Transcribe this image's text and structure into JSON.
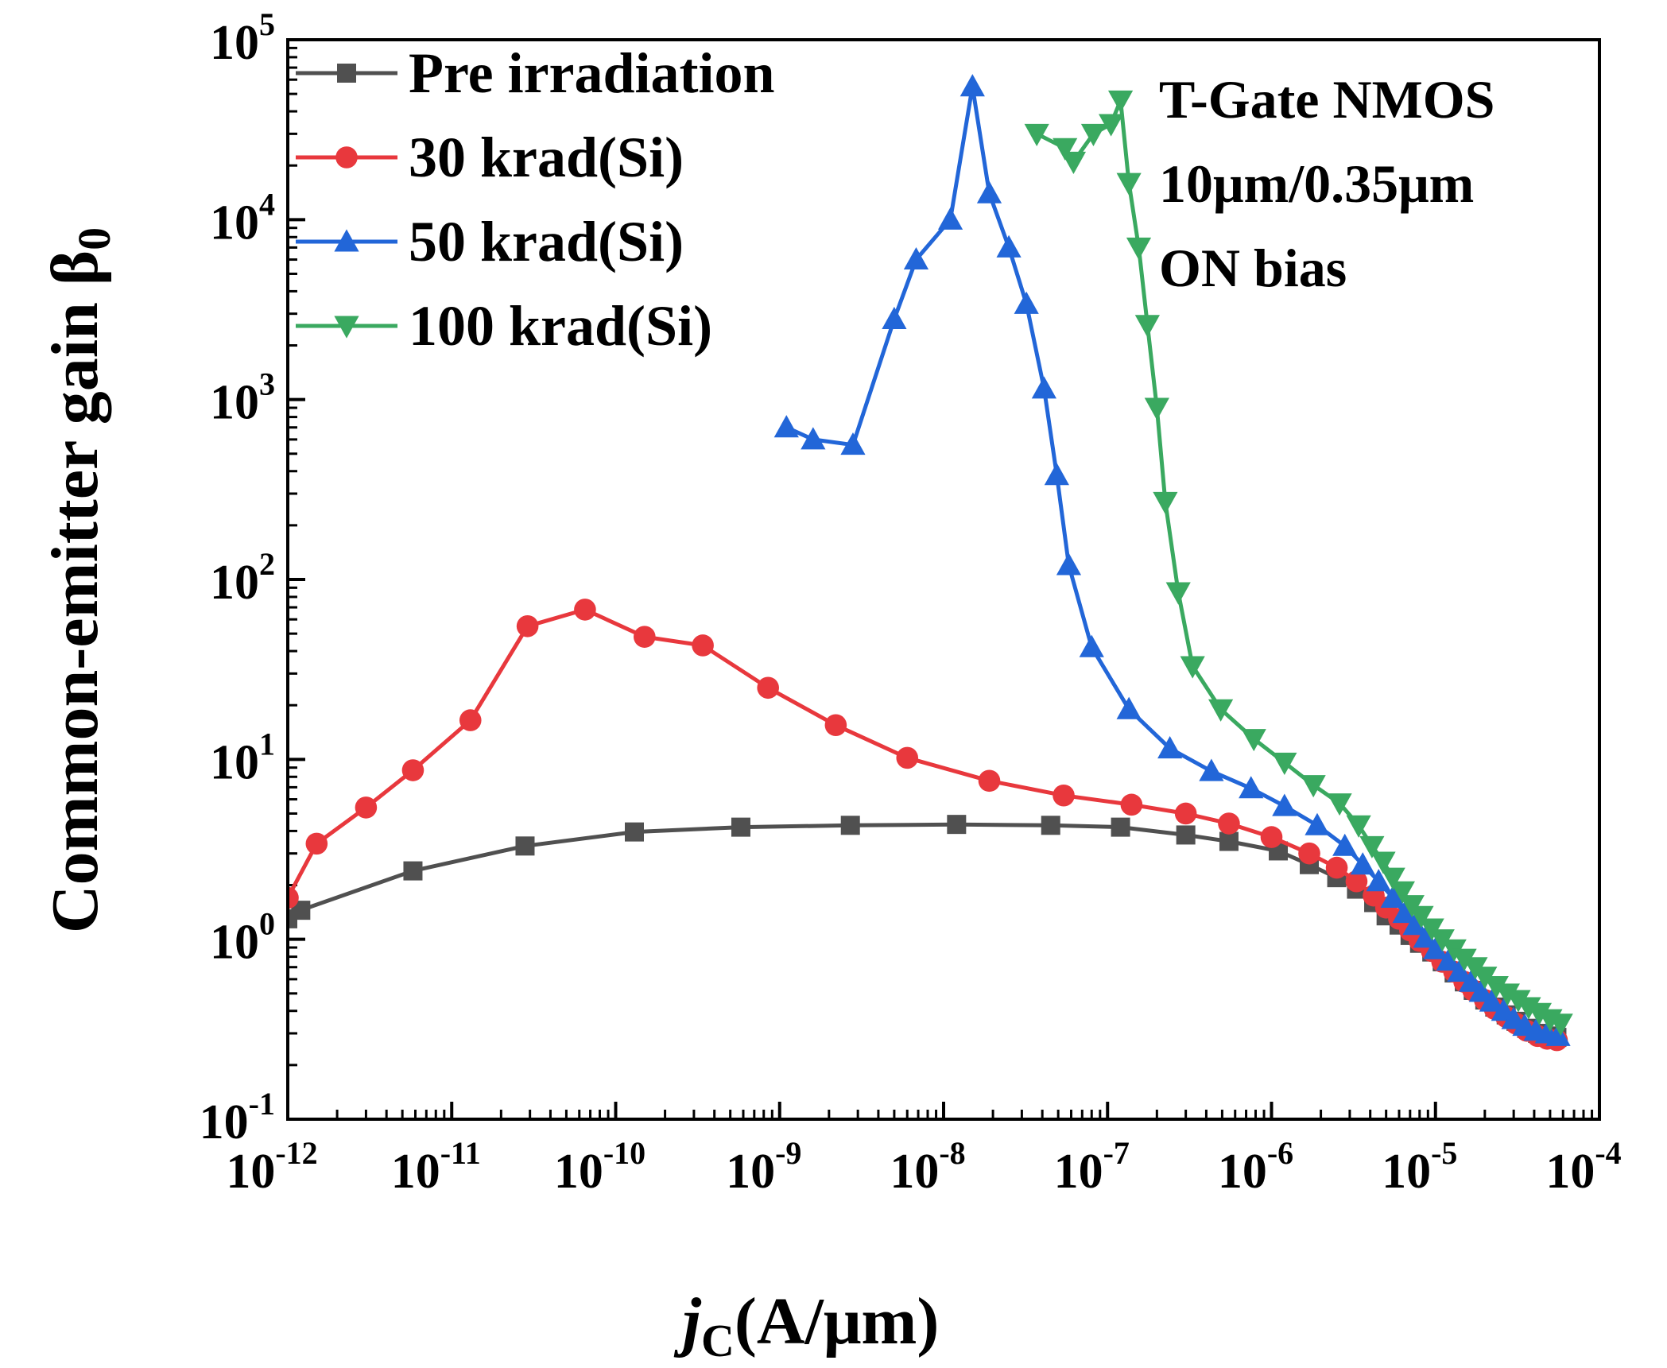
{
  "chart_data": {
    "type": "line",
    "xscale": "log",
    "yscale": "log",
    "xlim_exp": [
      -12,
      -4
    ],
    "ylim_exp": [
      -1,
      5
    ],
    "xlabel": {
      "italic": "j",
      "sub": "C",
      "rest": "(A/μm)"
    },
    "ylabel": {
      "text": "Common-emitter gain β",
      "sub": "0"
    },
    "x_ticks": [
      {
        "base": "10",
        "exp": "-12"
      },
      {
        "base": "10",
        "exp": "-11"
      },
      {
        "base": "10",
        "exp": "-10"
      },
      {
        "base": "10",
        "exp": "-9"
      },
      {
        "base": "10",
        "exp": "-8"
      },
      {
        "base": "10",
        "exp": "-7"
      },
      {
        "base": "10",
        "exp": "-6"
      },
      {
        "base": "10",
        "exp": "-5"
      },
      {
        "base": "10",
        "exp": "-4"
      }
    ],
    "y_ticks": [
      {
        "base": "10",
        "exp": "-1"
      },
      {
        "base": "10",
        "exp": "0"
      },
      {
        "base": "10",
        "exp": "1"
      },
      {
        "base": "10",
        "exp": "2"
      },
      {
        "base": "10",
        "exp": "3"
      },
      {
        "base": "10",
        "exp": "4"
      },
      {
        "base": "10",
        "exp": "5"
      }
    ],
    "annotations": [
      "T-Gate NMOS",
      "10μm/0.35μm",
      "ON bias"
    ],
    "series": [
      {
        "name": "Pre irradiation",
        "color": "#505050",
        "marker": "square",
        "x": [
          1e-12,
          1.2e-12,
          5.8e-12,
          2.8e-11,
          1.3e-10,
          5.8e-10,
          2.7e-09,
          1.2e-08,
          4.5e-08,
          1.2e-07,
          3e-07,
          5.5e-07,
          1.1e-06,
          1.7e-06,
          2.5e-06,
          3.3e-06,
          4.2e-06,
          5e-06,
          6e-06,
          7e-06,
          8e-06,
          9.5e-06,
          1.1e-05,
          1.3e-05,
          1.5e-05,
          1.7e-05,
          2e-05,
          2.3e-05,
          2.7e-05,
          3.1e-05,
          3.6e-05,
          4.2e-05,
          4.8e-05,
          5.5e-05
        ],
        "y": [
          1.3,
          1.45,
          2.4,
          3.3,
          3.95,
          4.2,
          4.3,
          4.35,
          4.3,
          4.2,
          3.8,
          3.5,
          3.1,
          2.6,
          2.2,
          1.9,
          1.6,
          1.35,
          1.2,
          1.05,
          0.95,
          0.85,
          0.75,
          0.65,
          0.58,
          0.52,
          0.46,
          0.42,
          0.38,
          0.35,
          0.32,
          0.3,
          0.29,
          0.285
        ]
      },
      {
        "name": "30 krad(Si)",
        "color": "#e8383d",
        "marker": "circle",
        "x": [
          1e-12,
          1.5e-12,
          3e-12,
          5.8e-12,
          1.3e-11,
          2.9e-11,
          6.5e-11,
          1.5e-10,
          3.4e-10,
          8.5e-10,
          2.2e-09,
          6e-09,
          1.9e-08,
          5.4e-08,
          1.4e-07,
          3e-07,
          5.5e-07,
          1e-06,
          1.7e-06,
          2.5e-06,
          3.3e-06,
          4.2e-06,
          5e-06,
          6e-06,
          7e-06,
          8e-06,
          9.5e-06,
          1.1e-05,
          1.3e-05,
          1.5e-05,
          1.7e-05,
          2e-05,
          2.3e-05,
          2.7e-05,
          3.1e-05,
          3.6e-05,
          4.2e-05,
          4.8e-05,
          5.5e-05
        ],
        "y": [
          1.7,
          3.4,
          5.4,
          8.7,
          16.5,
          55,
          68,
          48,
          43,
          25,
          15.5,
          10.2,
          7.6,
          6.3,
          5.6,
          5.0,
          4.4,
          3.7,
          3.0,
          2.5,
          2.1,
          1.75,
          1.5,
          1.3,
          1.12,
          0.98,
          0.86,
          0.75,
          0.66,
          0.58,
          0.52,
          0.46,
          0.41,
          0.37,
          0.34,
          0.31,
          0.29,
          0.28,
          0.275
        ]
      },
      {
        "name": "50 krad(Si)",
        "color": "#2266d8",
        "marker": "triangle-up",
        "x": [
          1.1e-09,
          1.6e-09,
          2.8e-09,
          5e-09,
          6.8e-09,
          1.1e-08,
          1.5e-08,
          1.9e-08,
          2.5e-08,
          3.2e-08,
          4.1e-08,
          4.9e-08,
          5.8e-08,
          8e-08,
          1.35e-07,
          2.4e-07,
          4.3e-07,
          7.5e-07,
          1.2e-06,
          1.9e-06,
          2.8e-06,
          3.6e-06,
          4.5e-06,
          5.5e-06,
          6.5e-06,
          7.5e-06,
          8.7e-06,
          1e-05,
          1.2e-05,
          1.4e-05,
          1.65e-05,
          1.9e-05,
          2.2e-05,
          2.6e-05,
          3e-05,
          3.5e-05,
          4.1e-05,
          4.8e-05,
          5.6e-05
        ],
        "y": [
          700,
          600,
          560,
          2800,
          6000,
          10000,
          55000,
          14000,
          7000,
          3400,
          1150,
          380,
          120,
          42,
          19,
          11.5,
          8.6,
          6.9,
          5.5,
          4.3,
          3.3,
          2.6,
          2.1,
          1.7,
          1.4,
          1.2,
          1.02,
          0.88,
          0.76,
          0.66,
          0.58,
          0.51,
          0.45,
          0.4,
          0.36,
          0.33,
          0.31,
          0.3,
          0.29
        ]
      },
      {
        "name": "100 krad(Si)",
        "color": "#3aa960",
        "marker": "triangle-down",
        "x": [
          3.7e-08,
          5.5e-08,
          6.2e-08,
          8.2e-08,
          1.05e-07,
          1.2e-07,
          1.35e-07,
          1.55e-07,
          1.75e-07,
          2e-07,
          2.25e-07,
          2.7e-07,
          3.3e-07,
          4.9e-07,
          7.8e-07,
          1.2e-06,
          1.8e-06,
          2.6e-06,
          3.4e-06,
          4.1e-06,
          4.8e-06,
          5.5e-06,
          6.3e-06,
          7.2e-06,
          8.2e-06,
          9.5e-06,
          1.1e-05,
          1.3e-05,
          1.5e-05,
          1.75e-05,
          2e-05,
          2.35e-05,
          2.75e-05,
          3.2e-05,
          3.7e-05,
          4.3e-05,
          5e-05,
          5.8e-05
        ],
        "y": [
          30000,
          25000,
          21000,
          30000,
          34000,
          46000,
          16000,
          7000,
          2600,
          900,
          270,
          85,
          33,
          19,
          13,
          9.6,
          7.2,
          5.7,
          4.3,
          3.3,
          2.7,
          2.2,
          1.85,
          1.55,
          1.35,
          1.15,
          1.0,
          0.88,
          0.78,
          0.7,
          0.62,
          0.55,
          0.5,
          0.46,
          0.42,
          0.39,
          0.36,
          0.34
        ]
      }
    ]
  }
}
